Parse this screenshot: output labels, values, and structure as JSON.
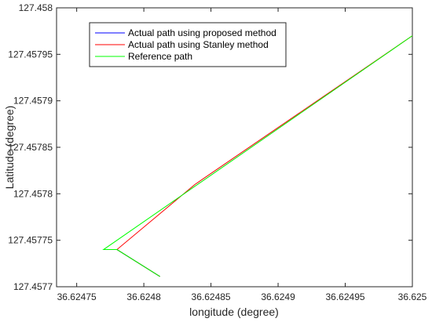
{
  "chart_data": {
    "type": "line",
    "title": "",
    "xlabel": "longitude (degree)",
    "ylabel": "Latitude (degree)",
    "xlim": [
      36.624735,
      36.625
    ],
    "ylim": [
      127.4577,
      127.458
    ],
    "x_ticks": [
      36.62475,
      36.6248,
      36.62485,
      36.6249,
      36.62495,
      36.625
    ],
    "x_tick_labels": [
      "36.62475",
      "36.6248",
      "36.62485",
      "36.6249",
      "36.62495",
      "36.625"
    ],
    "y_ticks": [
      127.4577,
      127.45775,
      127.4578,
      127.45785,
      127.4579,
      127.45795,
      127.458
    ],
    "y_tick_labels": [
      "127.4577",
      "127.45775",
      "127.4578",
      "127.45785",
      "127.4579",
      "127.45795",
      "127.458"
    ],
    "grid": false,
    "legend_position": "top-left",
    "series": [
      {
        "name": "Actual path using proposed method",
        "color": "#0000ff",
        "points": [
          [
            36.62477,
            127.45774
          ],
          [
            36.62478,
            127.45774
          ],
          [
            36.624812,
            127.457711
          ]
        ]
      },
      {
        "name": "Actual path using Stanley method",
        "color": "#ff0000",
        "points": [
          [
            36.625,
            127.45797
          ],
          [
            36.624838,
            127.45781
          ],
          [
            36.62478,
            127.45774
          ],
          [
            36.624812,
            127.457711
          ]
        ]
      },
      {
        "name": "Reference path",
        "color": "#00ff00",
        "points": [
          [
            36.625,
            127.45797
          ],
          [
            36.62477,
            127.45774
          ],
          [
            36.62478,
            127.45774
          ],
          [
            36.624812,
            127.457711
          ]
        ]
      }
    ]
  }
}
